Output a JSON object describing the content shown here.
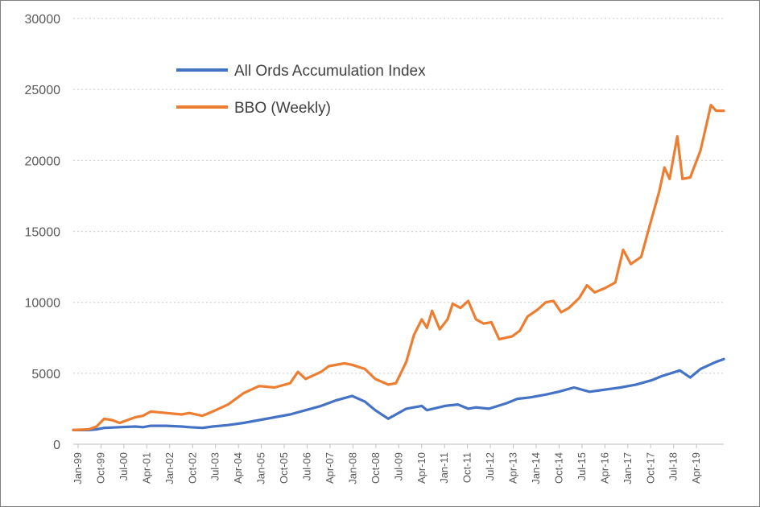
{
  "chart_data": {
    "type": "line",
    "title": "",
    "xlabel": "",
    "ylabel": "",
    "ylim": [
      0,
      30000
    ],
    "yticks": [
      0,
      5000,
      10000,
      15000,
      20000,
      25000,
      30000
    ],
    "grid": "horizontal dotted",
    "legend_position": "top-left",
    "x_tick_labels": [
      "Jan-99",
      "Oct-99",
      "Jul-00",
      "Apr-01",
      "Jan-02",
      "Oct-02",
      "Jul-03",
      "Apr-04",
      "Jan-05",
      "Oct-05",
      "Jul-06",
      "Apr-07",
      "Jan-08",
      "Oct-08",
      "Jul-09",
      "Apr-10",
      "Jan-11",
      "Oct-11",
      "Jul-12",
      "Apr-13",
      "Jan-14",
      "Oct-14",
      "Jul-15",
      "Apr-16",
      "Jan-17",
      "Oct-17",
      "Jul-18",
      "Apr-19"
    ],
    "series": [
      {
        "name": "All Ords Accumulation Index",
        "color": "#4472c4",
        "points": [
          [
            "1999-01",
            1000
          ],
          [
            "1999-07",
            1000
          ],
          [
            "1999-10",
            1050
          ],
          [
            "2000-01",
            1150
          ],
          [
            "2000-07",
            1200
          ],
          [
            "2001-01",
            1250
          ],
          [
            "2001-04",
            1200
          ],
          [
            "2001-07",
            1300
          ],
          [
            "2002-01",
            1300
          ],
          [
            "2002-07",
            1250
          ],
          [
            "2002-10",
            1200
          ],
          [
            "2003-03",
            1150
          ],
          [
            "2003-07",
            1250
          ],
          [
            "2004-01",
            1350
          ],
          [
            "2004-07",
            1500
          ],
          [
            "2005-01",
            1700
          ],
          [
            "2005-07",
            1900
          ],
          [
            "2006-01",
            2100
          ],
          [
            "2006-07",
            2400
          ],
          [
            "2007-01",
            2700
          ],
          [
            "2007-07",
            3100
          ],
          [
            "2007-11",
            3300
          ],
          [
            "2008-01",
            3400
          ],
          [
            "2008-06",
            3000
          ],
          [
            "2008-10",
            2400
          ],
          [
            "2009-03",
            1800
          ],
          [
            "2009-06",
            2100
          ],
          [
            "2009-10",
            2500
          ],
          [
            "2010-04",
            2700
          ],
          [
            "2010-06",
            2400
          ],
          [
            "2011-01",
            2700
          ],
          [
            "2011-06",
            2800
          ],
          [
            "2011-10",
            2500
          ],
          [
            "2012-01",
            2600
          ],
          [
            "2012-06",
            2500
          ],
          [
            "2013-01",
            2900
          ],
          [
            "2013-05",
            3200
          ],
          [
            "2013-10",
            3300
          ],
          [
            "2014-04",
            3500
          ],
          [
            "2014-09",
            3700
          ],
          [
            "2015-03",
            4000
          ],
          [
            "2015-09",
            3700
          ],
          [
            "2016-01",
            3800
          ],
          [
            "2016-09",
            4000
          ],
          [
            "2017-03",
            4200
          ],
          [
            "2017-09",
            4500
          ],
          [
            "2018-01",
            4800
          ],
          [
            "2018-08",
            5200
          ],
          [
            "2018-12",
            4700
          ],
          [
            "2019-04",
            5300
          ],
          [
            "2019-10",
            5800
          ],
          [
            "2020-01",
            6000
          ]
        ]
      },
      {
        "name": "BBO (Weekly)",
        "color": "#ed7d31",
        "points": [
          [
            "1999-01",
            1000
          ],
          [
            "1999-07",
            1050
          ],
          [
            "1999-10",
            1250
          ],
          [
            "2000-01",
            1800
          ],
          [
            "2000-04",
            1700
          ],
          [
            "2000-07",
            1500
          ],
          [
            "2001-01",
            1900
          ],
          [
            "2001-04",
            2000
          ],
          [
            "2001-07",
            2300
          ],
          [
            "2002-01",
            2200
          ],
          [
            "2002-07",
            2100
          ],
          [
            "2002-10",
            2200
          ],
          [
            "2003-03",
            2000
          ],
          [
            "2003-07",
            2300
          ],
          [
            "2004-01",
            2800
          ],
          [
            "2004-04",
            3200
          ],
          [
            "2004-07",
            3600
          ],
          [
            "2005-01",
            4100
          ],
          [
            "2005-07",
            4000
          ],
          [
            "2006-01",
            4300
          ],
          [
            "2006-04",
            5100
          ],
          [
            "2006-07",
            4600
          ],
          [
            "2007-01",
            5100
          ],
          [
            "2007-04",
            5500
          ],
          [
            "2007-10",
            5700
          ],
          [
            "2008-01",
            5600
          ],
          [
            "2008-06",
            5300
          ],
          [
            "2008-10",
            4600
          ],
          [
            "2009-03",
            4200
          ],
          [
            "2009-06",
            4300
          ],
          [
            "2009-10",
            5800
          ],
          [
            "2010-01",
            7700
          ],
          [
            "2010-04",
            8800
          ],
          [
            "2010-06",
            8200
          ],
          [
            "2010-08",
            9400
          ],
          [
            "2010-11",
            8100
          ],
          [
            "2011-02",
            8800
          ],
          [
            "2011-04",
            9900
          ],
          [
            "2011-07",
            9600
          ],
          [
            "2011-10",
            10100
          ],
          [
            "2012-01",
            8800
          ],
          [
            "2012-04",
            8500
          ],
          [
            "2012-07",
            8600
          ],
          [
            "2012-10",
            7400
          ],
          [
            "2013-03",
            7600
          ],
          [
            "2013-06",
            8000
          ],
          [
            "2013-09",
            9000
          ],
          [
            "2014-01",
            9500
          ],
          [
            "2014-04",
            10000
          ],
          [
            "2014-07",
            10100
          ],
          [
            "2014-10",
            9300
          ],
          [
            "2015-01",
            9600
          ],
          [
            "2015-05",
            10300
          ],
          [
            "2015-08",
            11200
          ],
          [
            "2015-11",
            10700
          ],
          [
            "2016-03",
            11000
          ],
          [
            "2016-07",
            11400
          ],
          [
            "2016-10",
            13700
          ],
          [
            "2017-01",
            12700
          ],
          [
            "2017-05",
            13200
          ],
          [
            "2017-08",
            15200
          ],
          [
            "2017-12",
            17800
          ],
          [
            "2018-02",
            19500
          ],
          [
            "2018-04",
            18700
          ],
          [
            "2018-07",
            21700
          ],
          [
            "2018-09",
            18700
          ],
          [
            "2018-12",
            18800
          ],
          [
            "2019-04",
            20700
          ],
          [
            "2019-06",
            22300
          ],
          [
            "2019-08",
            23900
          ],
          [
            "2019-10",
            23500
          ],
          [
            "2020-01",
            23500
          ]
        ]
      }
    ]
  }
}
